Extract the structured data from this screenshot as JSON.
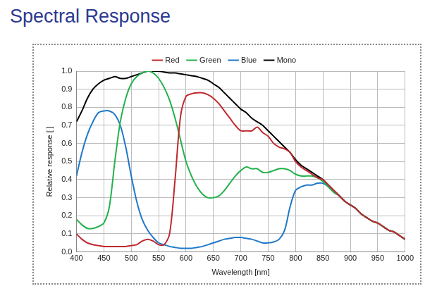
{
  "chart_data": {
    "type": "line",
    "title": "Spectral Response",
    "x_label": "Wavelength [nm]",
    "y_label": "Relative response [ ]",
    "legend": "top",
    "grid": true,
    "x": [
      400,
      410,
      420,
      430,
      440,
      450,
      460,
      470,
      480,
      490,
      500,
      510,
      520,
      530,
      540,
      550,
      560,
      570,
      580,
      590,
      600,
      610,
      620,
      630,
      640,
      650,
      660,
      670,
      680,
      690,
      700,
      710,
      720,
      730,
      740,
      750,
      760,
      770,
      780,
      790,
      800,
      810,
      820,
      830,
      840,
      850,
      860,
      870,
      880,
      890,
      900,
      910,
      920,
      930,
      940,
      950,
      960,
      970,
      980,
      990,
      1000
    ],
    "xlim": [
      400,
      1000
    ],
    "xticks": [
      400,
      450,
      500,
      550,
      600,
      650,
      700,
      750,
      800,
      850,
      900,
      950,
      1000
    ],
    "ylim": [
      0,
      1
    ],
    "yticks": [
      {
        "value": 0,
        "label": "0.0"
      },
      {
        "value": 0.1,
        "label": "0.1"
      },
      {
        "value": 0.2,
        "label": "0.2"
      },
      {
        "value": 0.3,
        "label": "0.3"
      },
      {
        "value": 0.4,
        "label": "0.4"
      },
      {
        "value": 0.5,
        "label": "0.5"
      },
      {
        "value": 0.6,
        "label": "0.6"
      },
      {
        "value": 0.7,
        "label": "0.7"
      },
      {
        "value": 0.8,
        "label": "0.8"
      },
      {
        "value": 0.9,
        "label": "0.9"
      },
      {
        "value": 1,
        "label": "1.0"
      }
    ],
    "series": [
      {
        "name": "Red",
        "color": "#c0282d",
        "values": [
          0.1,
          0.07,
          0.05,
          0.04,
          0.035,
          0.03,
          0.03,
          0.03,
          0.03,
          0.03,
          0.035,
          0.04,
          0.06,
          0.07,
          0.06,
          0.04,
          0.04,
          0.1,
          0.4,
          0.75,
          0.86,
          0.875,
          0.88,
          0.88,
          0.87,
          0.85,
          0.82,
          0.78,
          0.74,
          0.7,
          0.67,
          0.67,
          0.67,
          0.69,
          0.66,
          0.64,
          0.6,
          0.58,
          0.57,
          0.55,
          0.5,
          0.47,
          0.45,
          0.43,
          0.41,
          0.4,
          0.37,
          0.34,
          0.31,
          0.28,
          0.26,
          0.24,
          0.21,
          0.19,
          0.17,
          0.16,
          0.14,
          0.12,
          0.11,
          0.09,
          0.07
        ]
      },
      {
        "name": "Green",
        "color": "#22b24c",
        "values": [
          0.18,
          0.15,
          0.13,
          0.13,
          0.14,
          0.16,
          0.25,
          0.5,
          0.72,
          0.85,
          0.93,
          0.97,
          0.99,
          1.0,
          0.99,
          0.96,
          0.91,
          0.84,
          0.74,
          0.62,
          0.5,
          0.42,
          0.36,
          0.32,
          0.3,
          0.3,
          0.31,
          0.34,
          0.38,
          0.42,
          0.45,
          0.47,
          0.46,
          0.46,
          0.44,
          0.44,
          0.45,
          0.46,
          0.46,
          0.45,
          0.43,
          0.42,
          0.42,
          0.42,
          0.41,
          0.39,
          0.36,
          0.33,
          0.31,
          0.28,
          0.26,
          0.24,
          0.21,
          0.19,
          0.17,
          0.16,
          0.14,
          0.12,
          0.11,
          0.09,
          0.07
        ]
      },
      {
        "name": "Blue",
        "color": "#1f78c8",
        "values": [
          0.42,
          0.55,
          0.65,
          0.72,
          0.77,
          0.78,
          0.78,
          0.76,
          0.7,
          0.58,
          0.42,
          0.28,
          0.18,
          0.12,
          0.08,
          0.05,
          0.04,
          0.03,
          0.025,
          0.02,
          0.02,
          0.02,
          0.025,
          0.03,
          0.04,
          0.05,
          0.06,
          0.07,
          0.075,
          0.08,
          0.08,
          0.075,
          0.07,
          0.06,
          0.05,
          0.05,
          0.055,
          0.07,
          0.12,
          0.25,
          0.34,
          0.36,
          0.37,
          0.37,
          0.38,
          0.38,
          0.36,
          0.33,
          0.31,
          0.28,
          0.26,
          0.24,
          0.21,
          0.19,
          0.17,
          0.16,
          0.14,
          0.12,
          0.11,
          0.09,
          0.07
        ]
      },
      {
        "name": "Mono",
        "color": "#000000",
        "values": [
          0.72,
          0.78,
          0.85,
          0.9,
          0.93,
          0.95,
          0.96,
          0.97,
          0.96,
          0.96,
          0.97,
          0.98,
          0.99,
          1.0,
          1.0,
          1.0,
          0.995,
          0.99,
          0.99,
          0.985,
          0.98,
          0.975,
          0.97,
          0.96,
          0.95,
          0.93,
          0.91,
          0.88,
          0.85,
          0.82,
          0.79,
          0.77,
          0.74,
          0.72,
          0.7,
          0.67,
          0.64,
          0.61,
          0.58,
          0.55,
          0.51,
          0.48,
          0.46,
          0.44,
          0.42,
          0.4,
          0.37,
          0.34,
          0.31,
          0.28,
          0.26,
          0.24,
          0.21,
          0.19,
          0.17,
          0.16,
          0.14,
          0.12,
          0.11,
          0.09,
          0.07
        ]
      }
    ]
  }
}
